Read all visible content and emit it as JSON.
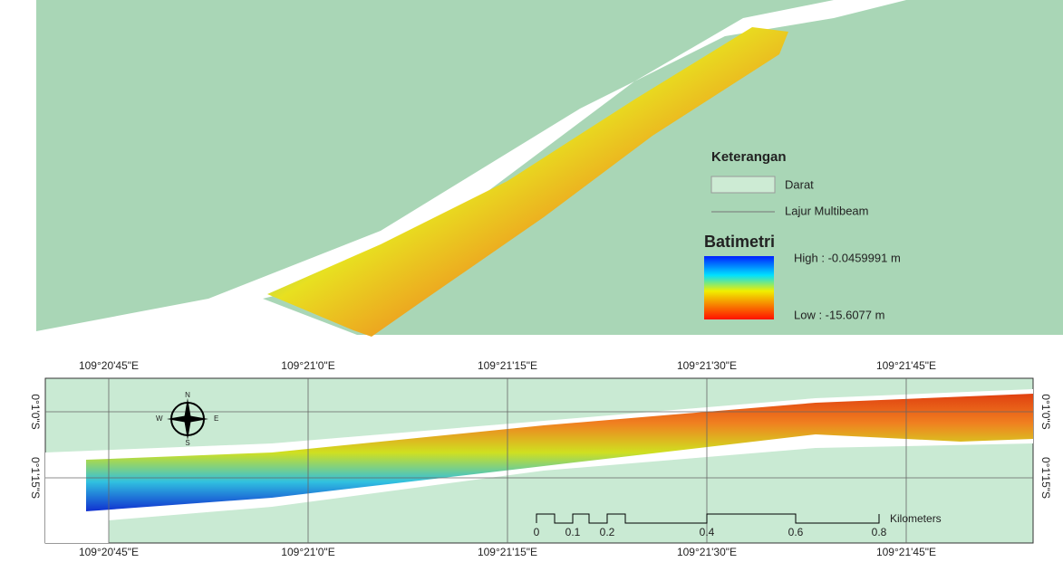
{
  "top_map": {
    "legend": {
      "title": "Keterangan",
      "items": [
        "Darat",
        "Lajur Multibeam"
      ],
      "bathymetry": {
        "title": "Batimetri",
        "high": "High : -0.0459991 m",
        "low": "Low : -15.6077 m"
      }
    }
  },
  "bottom_map": {
    "top_labels": [
      "109°20'45\"E",
      "109°21'0\"E",
      "109°21'15\"E",
      "109°21'30\"E",
      "109°21'45\"E"
    ],
    "bottom_labels": [
      "109°20'45\"E",
      "109°21'0\"E",
      "109°21'15\"E",
      "109°21'30\"E",
      "109°21'45\"E"
    ],
    "left_labels": [
      "0°1'0\"S",
      "0°1'15\"S"
    ],
    "right_labels": [
      "0°1'0\"S",
      "0°1'15\"S"
    ],
    "compass": [
      "N",
      "S",
      "E",
      "W"
    ],
    "scale_bar": {
      "ticks": [
        "0",
        "0.1",
        "0.2",
        "0.4",
        "0.6",
        "0.8"
      ],
      "unit": "Kilometers"
    }
  }
}
